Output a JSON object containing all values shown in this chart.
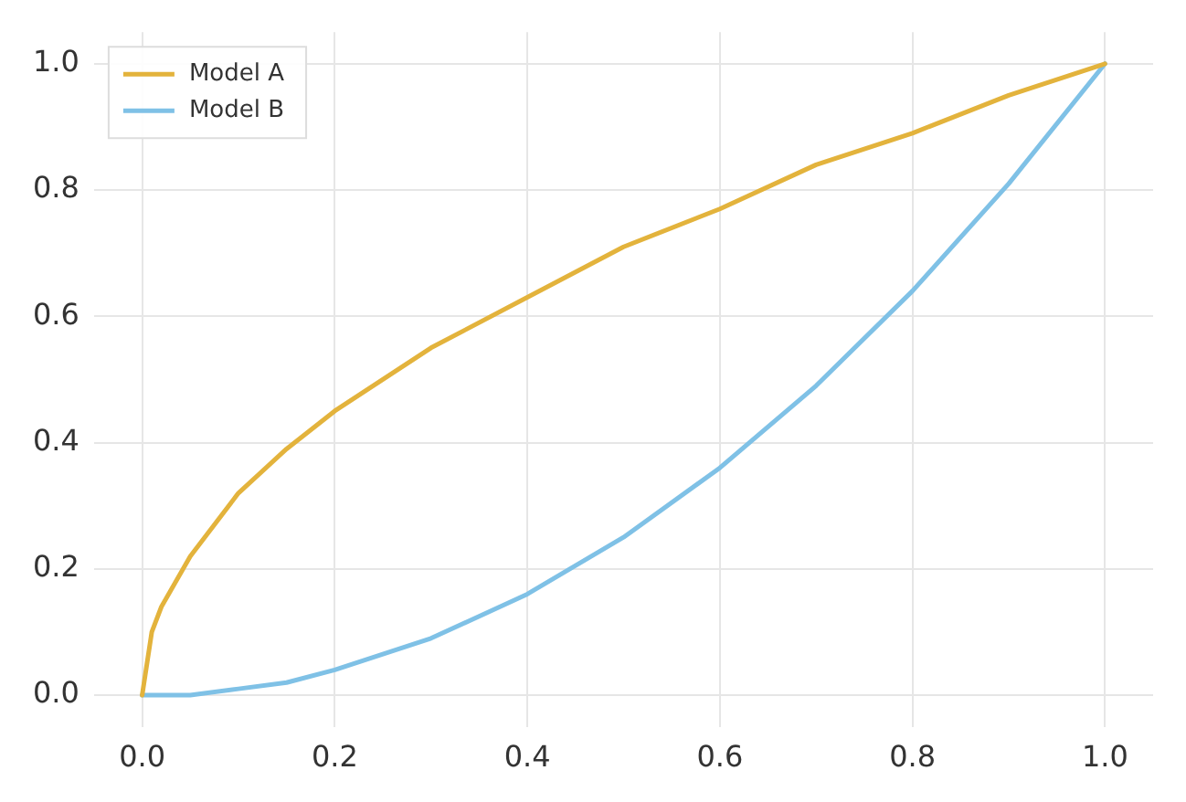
{
  "chart_data": {
    "type": "line",
    "x": [
      0,
      0.01,
      0.02,
      0.05,
      0.1,
      0.15,
      0.2,
      0.3,
      0.4,
      0.5,
      0.6,
      0.7,
      0.8,
      0.9,
      1.0
    ],
    "series": [
      {
        "name": "Model A",
        "color": "#e3b33c",
        "values": [
          0,
          0.1,
          0.14,
          0.22,
          0.32,
          0.39,
          0.45,
          0.55,
          0.63,
          0.71,
          0.77,
          0.84,
          0.89,
          0.95,
          1.0
        ]
      },
      {
        "name": "Model B",
        "color": "#7fc1e6",
        "values": [
          0,
          0,
          0,
          0,
          0.01,
          0.02,
          0.04,
          0.09,
          0.16,
          0.25,
          0.36,
          0.49,
          0.64,
          0.81,
          1.0
        ]
      }
    ],
    "xlim": [
      -0.05,
      1.05
    ],
    "ylim": [
      -0.05,
      1.05
    ],
    "xticks": [
      {
        "value": 0,
        "label": "0.0"
      },
      {
        "value": 0.2,
        "label": "0.2"
      },
      {
        "value": 0.4,
        "label": "0.4"
      },
      {
        "value": 0.6,
        "label": "0.6"
      },
      {
        "value": 0.8,
        "label": "0.8"
      },
      {
        "value": 1,
        "label": "1.0"
      }
    ],
    "yticks": [
      {
        "value": 0,
        "label": "0.0"
      },
      {
        "value": 0.2,
        "label": "0.2"
      },
      {
        "value": 0.4,
        "label": "0.4"
      },
      {
        "value": 0.6,
        "label": "0.6"
      },
      {
        "value": 0.8,
        "label": "0.8"
      },
      {
        "value": 1,
        "label": "1.0"
      }
    ],
    "grid": true,
    "legend": "top left",
    "marker": "none",
    "line_style": "solid"
  }
}
